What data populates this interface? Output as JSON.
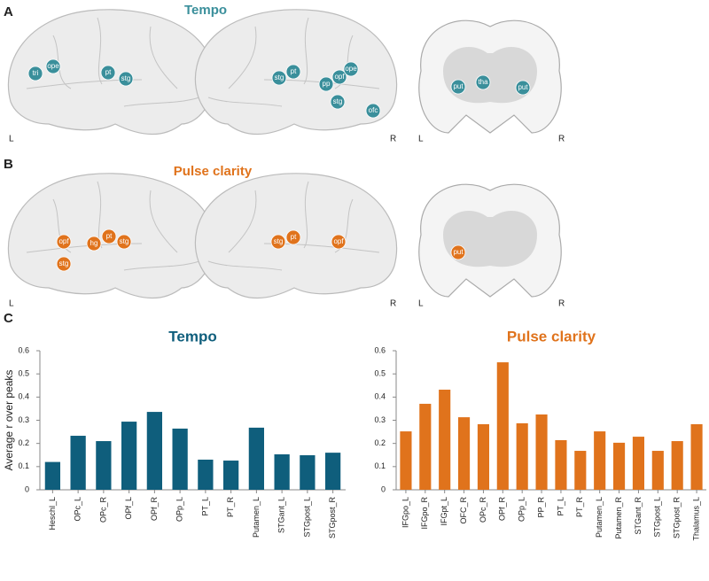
{
  "panel_labels": [
    "A",
    "B",
    "C"
  ],
  "brain_titles": [
    "Tempo",
    "Pulse clarity"
  ],
  "side_labels": {
    "left": "L",
    "right": "R"
  },
  "regions": {
    "a_left": [
      "tri",
      "ope",
      "pt",
      "stg"
    ],
    "a_right": [
      "stg",
      "pt",
      "pp",
      "opf",
      "ope",
      "stg",
      "ofc"
    ],
    "a_coronal": [
      "put",
      "tha",
      "put"
    ],
    "b_left": [
      "opf",
      "hg",
      "pt",
      "stg",
      "stg"
    ],
    "b_right": [
      "stg",
      "pt",
      "opf"
    ],
    "b_coronal": [
      "put"
    ]
  },
  "chart_data": [
    {
      "type": "bar",
      "title": "Tempo",
      "y_label": "Average r over peaks",
      "categories": [
        "Heschl_L",
        "OPc_L",
        "OPc_R",
        "OPf_L",
        "OPf_R",
        "OPp_L",
        "PT_L",
        "PT_R",
        "Putamen_L",
        "STGant_L",
        "STGpost_L",
        "STGpost_R"
      ],
      "values": [
        0.12,
        0.233,
        0.21,
        0.294,
        0.336,
        0.264,
        0.13,
        0.126,
        0.268,
        0.153,
        0.149,
        0.16
      ],
      "color": "#0f5e7c",
      "ylim": [
        0,
        0.6
      ],
      "yticks": [
        0,
        0.1,
        0.2,
        0.3,
        0.4,
        0.5,
        0.6
      ]
    },
    {
      "type": "bar",
      "title": "Pulse clarity",
      "categories": [
        "IFGpo_L",
        "IFGpo_R",
        "IFGpt_L",
        "OFC_R",
        "OPc_R",
        "OPf_R",
        "OPp_L",
        "PP_R",
        "PT_L",
        "PT_R",
        "Putamen_L",
        "Putamen_R",
        "STGant_R",
        "STGpost_L",
        "STGpost_R",
        "Thalamus_L"
      ],
      "values": [
        0.252,
        0.371,
        0.432,
        0.313,
        0.283,
        0.55,
        0.287,
        0.325,
        0.214,
        0.168,
        0.252,
        0.203,
        0.229,
        0.168,
        0.21,
        0.283
      ],
      "color": "#e0731c",
      "ylim": [
        0,
        0.6
      ],
      "yticks": [
        0,
        0.1,
        0.2,
        0.3,
        0.4,
        0.5,
        0.6
      ]
    }
  ]
}
